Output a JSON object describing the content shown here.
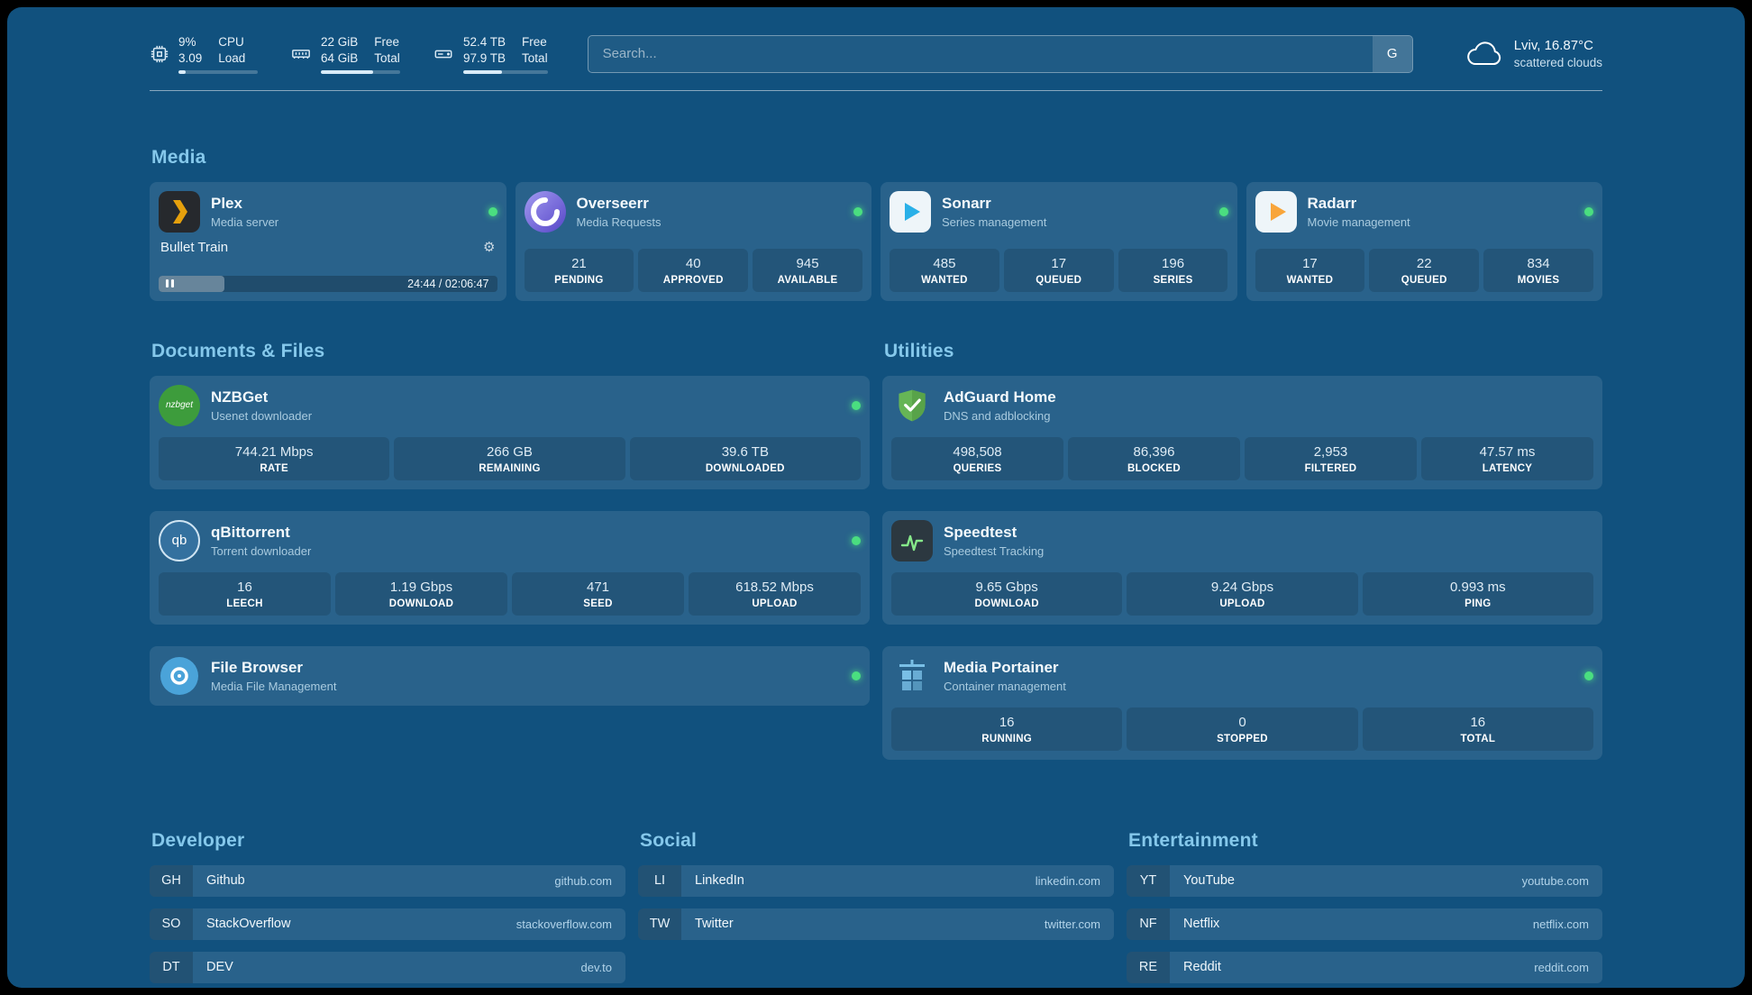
{
  "colors": {
    "bg": "#11517e",
    "heading": "#85c8eb",
    "status_online": "#4ade80",
    "plex": "#e5a00d",
    "overseerr": "#6c5ce7",
    "sonarr": "#29b0e8",
    "radarr": "#f8a53a",
    "nzbget": "#3d9c3c",
    "qbittorrent": "#34719f",
    "adguard": "#66b556",
    "speedtest_pulse": "#86e98a",
    "filebrowser": "#4aa3d9",
    "portainer": "#79bfe6"
  },
  "header": {
    "cpu": {
      "value_top": "9%",
      "value_bottom": "3.09",
      "label_top": "CPU",
      "label_bottom": "Load",
      "percent": 9
    },
    "memory": {
      "value_top": "22 GiB",
      "value_bottom": "64 GiB",
      "label_top": "Free",
      "label_bottom": "Total",
      "percent": 66
    },
    "disk": {
      "value_top": "52.4 TB",
      "value_bottom": "97.9 TB",
      "label_top": "Free",
      "label_bottom": "Total",
      "percent": 46
    },
    "search": {
      "placeholder": "Search...",
      "provider": "G"
    },
    "weather": {
      "location": "Lviv, 16.87°C",
      "condition": "scattered clouds"
    }
  },
  "sections": {
    "media": {
      "title": "Media",
      "plex": {
        "name": "Plex",
        "subtitle": "Media server",
        "now_playing": "Bullet Train",
        "time": "24:44 / 02:06:47",
        "progress_percent": 19.5
      },
      "overseerr": {
        "name": "Overseerr",
        "subtitle": "Media Requests",
        "stats": [
          {
            "value": "21",
            "label": "PENDING"
          },
          {
            "value": "40",
            "label": "APPROVED"
          },
          {
            "value": "945",
            "label": "AVAILABLE"
          }
        ]
      },
      "sonarr": {
        "name": "Sonarr",
        "subtitle": "Series management",
        "stats": [
          {
            "value": "485",
            "label": "WANTED"
          },
          {
            "value": "17",
            "label": "QUEUED"
          },
          {
            "value": "196",
            "label": "SERIES"
          }
        ]
      },
      "radarr": {
        "name": "Radarr",
        "subtitle": "Movie management",
        "stats": [
          {
            "value": "17",
            "label": "WANTED"
          },
          {
            "value": "22",
            "label": "QUEUED"
          },
          {
            "value": "834",
            "label": "MOVIES"
          }
        ]
      }
    },
    "documents": {
      "title": "Documents & Files",
      "nzbget": {
        "name": "NZBGet",
        "subtitle": "Usenet downloader",
        "icon_text": "nzbget",
        "stats": [
          {
            "value": "744.21 Mbps",
            "label": "RATE"
          },
          {
            "value": "266 GB",
            "label": "REMAINING"
          },
          {
            "value": "39.6 TB",
            "label": "DOWNLOADED"
          }
        ]
      },
      "qbittorrent": {
        "name": "qBittorrent",
        "subtitle": "Torrent downloader",
        "icon_text": "qb",
        "stats": [
          {
            "value": "16",
            "label": "LEECH"
          },
          {
            "value": "1.19 Gbps",
            "label": "DOWNLOAD"
          },
          {
            "value": "471",
            "label": "SEED"
          },
          {
            "value": "618.52 Mbps",
            "label": "UPLOAD"
          }
        ]
      },
      "filebrowser": {
        "name": "File Browser",
        "subtitle": "Media File Management"
      }
    },
    "utilities": {
      "title": "Utilities",
      "adguard": {
        "name": "AdGuard Home",
        "subtitle": "DNS and adblocking",
        "stats": [
          {
            "value": "498,508",
            "label": "QUERIES"
          },
          {
            "value": "86,396",
            "label": "BLOCKED"
          },
          {
            "value": "2,953",
            "label": "FILTERED"
          },
          {
            "value": "47.57 ms",
            "label": "LATENCY"
          }
        ]
      },
      "speedtest": {
        "name": "Speedtest",
        "subtitle": "Speedtest Tracking",
        "stats": [
          {
            "value": "9.65 Gbps",
            "label": "DOWNLOAD"
          },
          {
            "value": "9.24 Gbps",
            "label": "UPLOAD"
          },
          {
            "value": "0.993 ms",
            "label": "PING"
          }
        ]
      },
      "portainer": {
        "name": "Media Portainer",
        "subtitle": "Container management",
        "stats": [
          {
            "value": "16",
            "label": "RUNNING"
          },
          {
            "value": "0",
            "label": "STOPPED"
          },
          {
            "value": "16",
            "label": "TOTAL"
          }
        ]
      }
    }
  },
  "bookmarks": {
    "developer": {
      "title": "Developer",
      "items": [
        {
          "abbr": "GH",
          "name": "Github",
          "domain": "github.com"
        },
        {
          "abbr": "SO",
          "name": "StackOverflow",
          "domain": "stackoverflow.com"
        },
        {
          "abbr": "DT",
          "name": "DEV",
          "domain": "dev.to"
        }
      ]
    },
    "social": {
      "title": "Social",
      "items": [
        {
          "abbr": "LI",
          "name": "LinkedIn",
          "domain": "linkedin.com"
        },
        {
          "abbr": "TW",
          "name": "Twitter",
          "domain": "twitter.com"
        }
      ]
    },
    "entertainment": {
      "title": "Entertainment",
      "items": [
        {
          "abbr": "YT",
          "name": "YouTube",
          "domain": "youtube.com"
        },
        {
          "abbr": "NF",
          "name": "Netflix",
          "domain": "netflix.com"
        },
        {
          "abbr": "RE",
          "name": "Reddit",
          "domain": "reddit.com"
        }
      ]
    }
  }
}
